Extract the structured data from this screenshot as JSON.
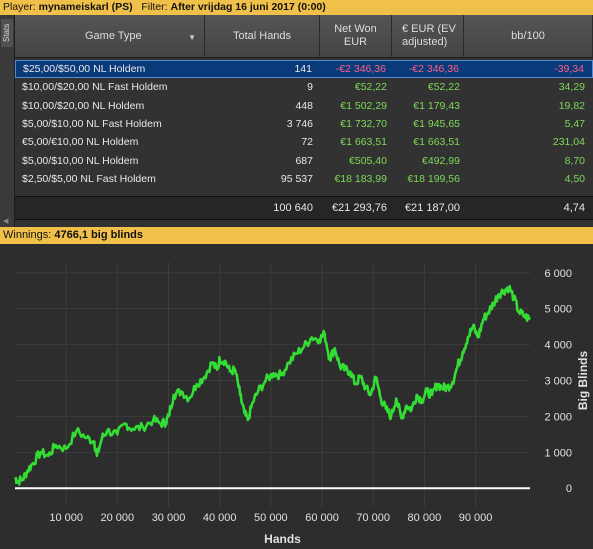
{
  "filter_bar": {
    "player_label": "Player:",
    "player_value": "mynameiskarl (PS)",
    "filter_label": "Filter:",
    "filter_value": "After vrijdag 16 juni 2017 (0:00)"
  },
  "side_tab": {
    "label": "Stats"
  },
  "table": {
    "headers": {
      "game_type": "Game Type",
      "total_hands": "Total Hands",
      "net_won_1": "Net Won",
      "net_won_2": "EUR",
      "ev_1": "€ EUR (EV",
      "ev_2": "adjusted)",
      "bb100": "bb/100"
    },
    "rows": [
      {
        "game": "$25,00/$50,00 NL Holdem",
        "hands": "141",
        "net": "-€2 346,36",
        "ev": "-€2 346,36",
        "bb100": "-39,34",
        "sign": "neg",
        "selected": true
      },
      {
        "game": "$10,00/$20,00 NL Fast Holdem",
        "hands": "9",
        "net": "€52,22",
        "ev": "€52,22",
        "bb100": "34,29",
        "sign": "pos",
        "selected": false
      },
      {
        "game": "$10,00/$20,00 NL Holdem",
        "hands": "448",
        "net": "€1 502,29",
        "ev": "€1 179,43",
        "bb100": "19,82",
        "sign": "pos",
        "selected": false
      },
      {
        "game": "$5,00/$10,00 NL Fast Holdem",
        "hands": "3 746",
        "net": "€1 732,70",
        "ev": "€1 945,65",
        "bb100": "5,47",
        "sign": "pos",
        "selected": false
      },
      {
        "game": "€5,00/€10,00 NL Holdem",
        "hands": "72",
        "net": "€1 663,51",
        "ev": "€1 663,51",
        "bb100": "231,04",
        "sign": "pos",
        "selected": false
      },
      {
        "game": "$5,00/$10,00 NL Holdem",
        "hands": "687",
        "net": "€505,40",
        "ev": "€492,99",
        "bb100": "8,70",
        "sign": "pos",
        "selected": false
      },
      {
        "game": "$2,50/$5,00 NL Fast Holdem",
        "hands": "95 537",
        "net": "€18 183,99",
        "ev": "€18 199,56",
        "bb100": "4,50",
        "sign": "pos",
        "selected": false
      }
    ],
    "totals": {
      "hands": "100 640",
      "net": "€21 293,76",
      "ev": "€21 187,00",
      "bb100": "4,74"
    }
  },
  "winnings_bar": {
    "label": "Winnings:",
    "value": "4766,1 big blinds"
  },
  "chart_data": {
    "type": "line",
    "title": "",
    "xlabel": "Hands",
    "ylabel": "Big Blinds",
    "xlim": [
      0,
      100640
    ],
    "ylim": [
      -300,
      6300
    ],
    "x_ticks": [
      10000,
      20000,
      30000,
      40000,
      50000,
      60000,
      70000,
      80000,
      90000
    ],
    "x_tick_labels": [
      "10 000",
      "20 000",
      "30 000",
      "40 000",
      "50 000",
      "60 000",
      "70 000",
      "80 000",
      "90 000"
    ],
    "y_ticks": [
      0,
      1000,
      2000,
      3000,
      4000,
      5000,
      6000
    ],
    "y_tick_labels": [
      "0",
      "1 000",
      "2 000",
      "3 000",
      "4 000",
      "5 000",
      "6 000"
    ],
    "series_color": "#33dd33",
    "zero_line_color": "#ffffff",
    "series": [
      {
        "x": [
          0,
          500,
          1500,
          2500,
          3500,
          5000,
          6500,
          8000,
          10000,
          12000,
          14000,
          15500,
          16000,
          17000,
          18000,
          20000,
          21500,
          23000,
          25000,
          27000,
          28500,
          29500,
          30000,
          31000,
          32500,
          34000,
          35500,
          37000,
          38500,
          39500,
          40000,
          41000,
          42000,
          43000,
          44000,
          44800,
          45500,
          46500,
          47500,
          49000,
          50500,
          52000,
          53500,
          55000,
          56500,
          58000,
          59500,
          60500,
          61500,
          62500,
          63500,
          64500,
          65500,
          66500,
          67500,
          68500,
          69500,
          70500,
          71500,
          72500,
          73500,
          74500,
          75500,
          76500,
          77500,
          78500,
          79500,
          80500,
          81500,
          82500,
          83500,
          84500,
          85500,
          86500,
          87500,
          88500,
          89500,
          90500,
          91500,
          92500,
          93500,
          94500,
          95500,
          96500,
          97500,
          98500,
          99500,
          100640
        ],
        "y": [
          300,
          200,
          250,
          500,
          700,
          1000,
          900,
          1200,
          1100,
          1600,
          1400,
          1300,
          900,
          1400,
          1600,
          1500,
          1800,
          1650,
          1700,
          1900,
          1800,
          1850,
          2000,
          2600,
          2700,
          2500,
          2900,
          3100,
          3500,
          3300,
          3600,
          3550,
          3250,
          3300,
          2600,
          2100,
          1900,
          2400,
          2700,
          3000,
          3200,
          3150,
          3500,
          3750,
          3950,
          4200,
          4150,
          4300,
          3600,
          3900,
          3400,
          3300,
          3250,
          2900,
          3100,
          2800,
          2600,
          3100,
          2500,
          2200,
          2000,
          2500,
          1950,
          2300,
          2200,
          2600,
          2450,
          2700,
          2600,
          2900,
          2800,
          2800,
          2950,
          3400,
          3800,
          4200,
          4500,
          4200,
          4700,
          4900,
          5150,
          5400,
          5500,
          5600,
          5300,
          4900,
          4800,
          4700
        ]
      }
    ]
  }
}
